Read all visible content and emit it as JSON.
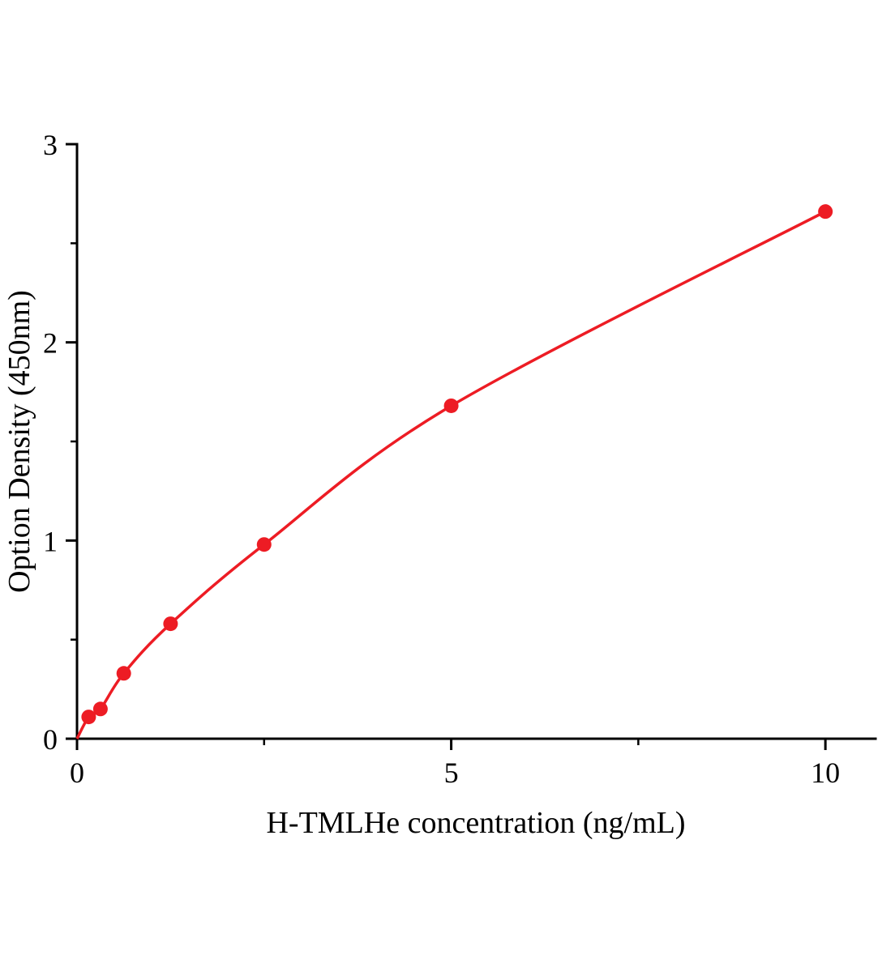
{
  "chart_data": {
    "type": "line",
    "title": "",
    "xlabel": "H-TMLHe concentration (ng/mL)",
    "ylabel": "Option Density (450nm)",
    "x": [
      0.156,
      0.313,
      0.625,
      1.25,
      2.5,
      5,
      10
    ],
    "y": [
      0.11,
      0.15,
      0.33,
      0.58,
      0.98,
      1.68,
      2.66
    ],
    "line_start": [
      0,
      0
    ],
    "xlim": [
      0,
      10.67
    ],
    "ylim": [
      0,
      3
    ],
    "x_major_ticks": [
      {
        "value": 0,
        "label": "0"
      },
      {
        "value": 5,
        "label": "5"
      },
      {
        "value": 10,
        "label": "10"
      }
    ],
    "x_minor_ticks": [
      2.5,
      7.5
    ],
    "y_major_ticks": [
      {
        "value": 0,
        "label": "0"
      },
      {
        "value": 1,
        "label": "1"
      },
      {
        "value": 2,
        "label": "2"
      },
      {
        "value": 3,
        "label": "3"
      }
    ],
    "y_minor_ticks": [
      0.5,
      1.5,
      2.5
    ],
    "series_color": "#ed1c24",
    "axis_color": "#000000",
    "marker": "circle",
    "marker_size": 9,
    "grid": false,
    "legend": "none"
  }
}
